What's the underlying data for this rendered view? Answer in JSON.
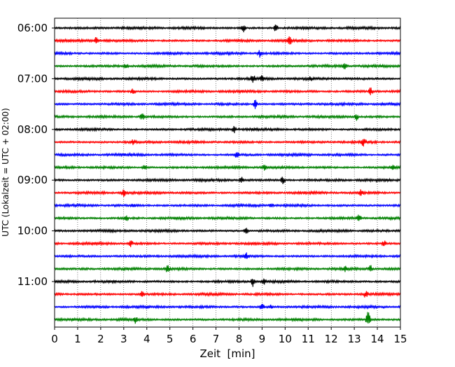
{
  "chart_data": {
    "type": "line",
    "title": "",
    "xlabel": "Zeit  [min]",
    "ylabel": "UTC (Lokalzeit = UTC + 02:00)",
    "xlim": [
      0,
      15
    ],
    "x_ticks": [
      0,
      1,
      2,
      3,
      4,
      5,
      6,
      7,
      8,
      9,
      10,
      11,
      12,
      13,
      14,
      15
    ],
    "x_tick_labels": [
      "0",
      "1",
      "2",
      "3",
      "4",
      "5",
      "6",
      "7",
      "8",
      "9",
      "10",
      "11",
      "12",
      "13",
      "14",
      "15"
    ],
    "y_tick_labels": [
      "06:00",
      "07:00",
      "08:00",
      "09:00",
      "10:00",
      "11:00"
    ],
    "grid": "vertical dotted at each minute",
    "line_colors": [
      "#000000",
      "#ff0000",
      "#0000ff",
      "#008000"
    ],
    "traces_per_hour": 4,
    "minutes_per_trace": 15,
    "trace_start_times": [
      "06:00",
      "06:15",
      "06:30",
      "06:45",
      "07:00",
      "07:15",
      "07:30",
      "07:45",
      "08:00",
      "08:15",
      "08:30",
      "08:45",
      "09:00",
      "09:15",
      "09:30",
      "09:45",
      "10:00",
      "10:15",
      "10:30",
      "10:45",
      "11:00",
      "11:15",
      "11:30",
      "11:45"
    ],
    "events": [
      [
        [
          8.2,
          0.9
        ],
        [
          9.6,
          1.0
        ]
      ],
      [
        [
          1.8,
          0.9
        ],
        [
          10.2,
          1.0
        ]
      ],
      [
        [
          8.9,
          0.8
        ]
      ],
      [
        [
          3.1,
          0.7
        ],
        [
          12.6,
          0.8
        ]
      ],
      [
        [
          8.6,
          1.0
        ],
        [
          9.0,
          0.6
        ],
        [
          11.1,
          0.5
        ]
      ],
      [
        [
          3.4,
          0.6
        ],
        [
          13.7,
          0.9
        ]
      ],
      [
        [
          8.7,
          1.0
        ]
      ],
      [
        [
          3.8,
          0.8
        ],
        [
          13.1,
          0.7
        ]
      ],
      [
        [
          7.8,
          0.8
        ]
      ],
      [
        [
          3.4,
          0.7
        ],
        [
          13.4,
          0.9
        ]
      ],
      [
        [
          7.9,
          0.7
        ]
      ],
      [
        [
          3.9,
          0.7
        ],
        [
          9.1,
          0.5
        ],
        [
          14.7,
          0.9
        ]
      ],
      [
        [
          8.1,
          0.9
        ],
        [
          9.9,
          1.0
        ]
      ],
      [
        [
          3.0,
          0.8
        ],
        [
          13.3,
          0.7
        ]
      ],
      [
        [
          3.4,
          0.5
        ],
        [
          9.4,
          0.5
        ]
      ],
      [
        [
          3.1,
          0.7
        ],
        [
          13.2,
          0.7
        ]
      ],
      [
        [
          8.3,
          0.7
        ]
      ],
      [
        [
          3.3,
          0.8
        ],
        [
          14.3,
          0.7
        ]
      ],
      [
        [
          8.3,
          0.8
        ]
      ],
      [
        [
          4.9,
          0.9
        ],
        [
          12.6,
          0.6
        ],
        [
          13.7,
          0.8
        ]
      ],
      [
        [
          8.6,
          1.0
        ],
        [
          9.1,
          0.6
        ]
      ],
      [
        [
          3.8,
          0.6
        ],
        [
          13.5,
          0.9
        ]
      ],
      [
        [
          9.0,
          0.8
        ],
        [
          9.4,
          0.5
        ]
      ],
      [
        [
          3.5,
          0.7
        ],
        [
          13.6,
          2.2
        ]
      ]
    ]
  }
}
